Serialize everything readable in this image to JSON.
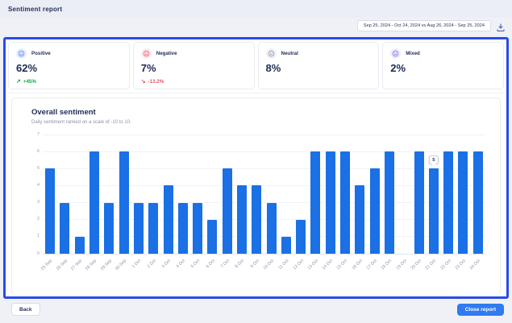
{
  "header": {
    "title": "Sentiment report"
  },
  "toolbar": {
    "date_range": "Sep 25, 2024 - Oct 24, 2024 vs Aug 26, 2024 - Sep 25, 2024",
    "download_icon": "download-icon"
  },
  "cards": [
    {
      "label": "Positive",
      "value": "62%",
      "delta": "+45%",
      "delta_arrow": "↗",
      "icon": "smiley-face-icon",
      "accent": "#4f7cf5",
      "icon_bg": "#e8eefc",
      "delta_color": "#18a050"
    },
    {
      "label": "Negative",
      "value": "7%",
      "delta": "-13.2%",
      "delta_arrow": "↘",
      "icon": "frown-face-icon",
      "accent": "#e0566b",
      "icon_bg": "#fdeaee",
      "delta_color": "#e0566b"
    },
    {
      "label": "Neutral",
      "value": "8%",
      "delta": "",
      "delta_arrow": "",
      "icon": "neutral-face-icon",
      "accent": "#8a93a6",
      "icon_bg": "#f0f1f5",
      "delta_color": "#8a93a6"
    },
    {
      "label": "Mixed",
      "value": "2%",
      "delta": "",
      "delta_arrow": "",
      "icon": "mixed-face-icon",
      "accent": "#7f6ae0",
      "icon_bg": "#efecfb",
      "delta_color": "#7f6ae0"
    }
  ],
  "chart": {
    "title": "Overall sentiment",
    "subtitle": "Daily sentiment ranked on a scale of -10 to 10."
  },
  "chart_data": {
    "type": "bar",
    "title": "Overall sentiment",
    "categories": [
      "25 Sep",
      "26 Sep",
      "27 Sep",
      "28 Sep",
      "29 Sep",
      "30 Sep",
      "1 Oct",
      "2 Oct",
      "3 Oct",
      "4 Oct",
      "5 Oct",
      "6 Oct",
      "7 Oct",
      "8 Oct",
      "9 Oct",
      "10 Oct",
      "11 Oct",
      "12 Oct",
      "13 Oct",
      "14 Oct",
      "15 Oct",
      "16 Oct",
      "17 Oct",
      "18 Oct",
      "19 Oct",
      "20 Oct",
      "21 Oct",
      "22 Oct",
      "23 Oct",
      "24 Oct"
    ],
    "values": [
      5,
      3,
      1,
      6,
      3,
      6,
      3,
      3,
      4,
      3,
      3,
      2,
      5,
      4,
      4,
      3,
      1,
      2,
      6,
      6,
      6,
      4,
      5,
      6,
      0,
      6,
      5,
      6,
      6,
      6
    ],
    "ylim": [
      0,
      7
    ],
    "yticks": [
      0,
      1,
      2,
      3,
      4,
      5,
      6,
      7
    ],
    "xlabel": "",
    "ylabel": "",
    "grid": true,
    "legend": false,
    "bar_color": "#1a70e4",
    "tooltip": {
      "index": 26,
      "label": "5"
    }
  },
  "footer": {
    "back_label": "Back",
    "close_label": "Close report"
  }
}
